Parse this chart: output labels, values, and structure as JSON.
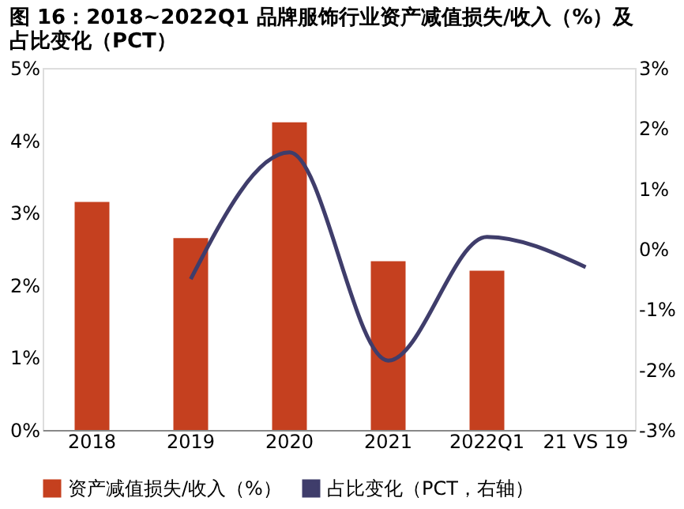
{
  "chart_data": {
    "type": "bar",
    "title": [
      "图 16：2018~2022Q1 品牌服饰行业资产减值损失/收入（%）及",
      "占比变化（PCT）"
    ],
    "categories": [
      "2018",
      "2019",
      "2020",
      "2021",
      "2022Q1",
      "21 VS 19"
    ],
    "series": [
      {
        "name": "资产减值损失/收入（%）",
        "color": "#c5401f",
        "values": [
          3.15,
          2.65,
          4.25,
          2.33,
          2.2,
          null
        ]
      },
      {
        "name": "占比变化（PCT，右轴）",
        "type": "line",
        "axis": "y2",
        "color": "#3f3d6b",
        "values": [
          null,
          -0.5,
          1.6,
          -1.85,
          0.2,
          -0.3
        ]
      }
    ],
    "ylim": [
      0,
      5
    ],
    "yticks": [
      {
        "value": 0,
        "label": "0%"
      },
      {
        "value": 1,
        "label": "1%"
      },
      {
        "value": 2,
        "label": "2%"
      },
      {
        "value": 3,
        "label": "3%"
      },
      {
        "value": 4,
        "label": "4%"
      },
      {
        "value": 5,
        "label": "5%"
      }
    ],
    "y2lim": [
      -3,
      3
    ],
    "y2ticks": [
      {
        "value": -3,
        "label": "-3%"
      },
      {
        "value": -2,
        "label": "-2%"
      },
      {
        "value": -1,
        "label": "-1%"
      },
      {
        "value": 0,
        "label": "0%"
      },
      {
        "value": 1,
        "label": "1%"
      },
      {
        "value": 2,
        "label": "2%"
      },
      {
        "value": 3,
        "label": "3%"
      }
    ],
    "grid": false,
    "legend": "bottom",
    "marker": "none"
  }
}
